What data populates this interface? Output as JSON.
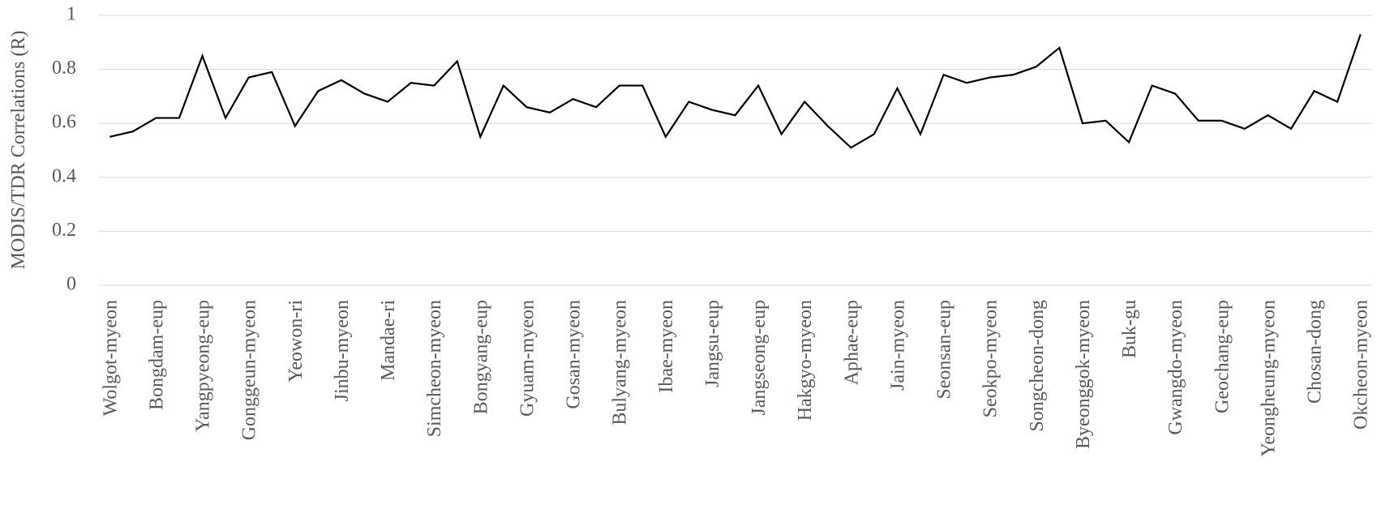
{
  "chart_data": {
    "type": "line",
    "y_label": "MODIS/TDR Correlations (R)",
    "categories": [
      "Wolgot-myeon",
      null,
      "Bongdam-eup",
      null,
      "Yangpyeong-eup",
      null,
      "Gonggeun-myeon",
      null,
      "Yeowon-ri",
      null,
      "Jinbu-myeon",
      null,
      "Mandae-ri",
      null,
      "Simcheon-myeon",
      null,
      "Bongyang-eup",
      null,
      "Gyuam-myeon",
      null,
      "Gosan-myeon",
      null,
      "Bulyang-myeon",
      null,
      "Ibae-myeon",
      null,
      "Jangsu-eup",
      null,
      "Jangseong-eup",
      null,
      "Hakgyo-myeon",
      null,
      "Aphae-eup",
      null,
      "Jain-myeon",
      null,
      "Seonsan-eup",
      null,
      "Seokpo-myeon",
      null,
      "Songcheon-dong",
      null,
      "Byeonggok-myeon",
      null,
      "Buk-gu",
      null,
      "Gwangdo-myeon",
      null,
      "Geochang-eup",
      null,
      "Yeongheung-myeon",
      null,
      "Chosan-dong",
      null,
      "Okcheon-myeon"
    ],
    "values": [
      0.55,
      0.57,
      0.62,
      0.62,
      0.85,
      0.62,
      0.77,
      0.79,
      0.59,
      0.72,
      0.76,
      0.71,
      0.68,
      0.75,
      0.74,
      0.83,
      0.55,
      0.74,
      0.66,
      0.64,
      0.69,
      0.66,
      0.74,
      0.74,
      0.55,
      0.68,
      0.65,
      0.63,
      0.74,
      0.56,
      0.68,
      0.59,
      0.51,
      0.56,
      0.73,
      0.56,
      0.78,
      0.75,
      0.77,
      0.78,
      0.81,
      0.88,
      0.6,
      0.61,
      0.53,
      0.74,
      0.71,
      0.61,
      0.61,
      0.58,
      0.63,
      0.58,
      0.72,
      0.68,
      0.93
    ],
    "color": "#000000",
    "ylim": [
      0,
      1
    ],
    "yticks": [
      0,
      0.2,
      0.4,
      0.6,
      0.8,
      1
    ],
    "grid": true
  }
}
